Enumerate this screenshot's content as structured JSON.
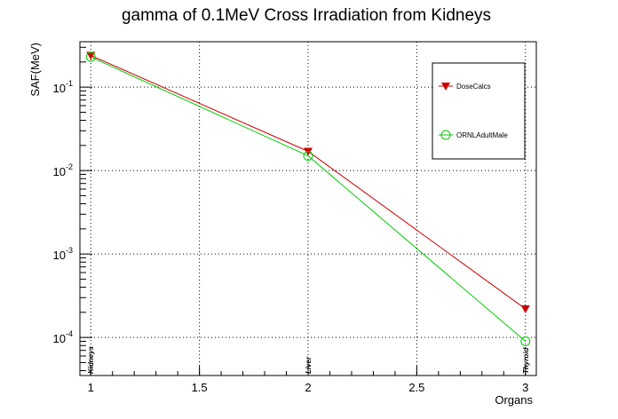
{
  "chart_data": {
    "type": "line",
    "title": "gamma of 0.1MeV Cross Irradiation from Kidneys",
    "xlabel": "Organs",
    "ylabel": "SAF(MeV)",
    "x_tick_labels": [
      "1",
      "1.5",
      "2",
      "2.5",
      "3"
    ],
    "x_ticks": [
      1,
      1.5,
      2,
      2.5,
      3
    ],
    "xlim": [
      0.95,
      3.05
    ],
    "y_scale": "log",
    "ylim": [
      3.5e-05,
      0.35
    ],
    "y_ticks": [
      {
        "value": 0.1,
        "base": "10",
        "exponent": "-1"
      },
      {
        "value": 0.01,
        "base": "10",
        "exponent": "-2"
      },
      {
        "value": 0.001,
        "base": "10",
        "exponent": "-3"
      },
      {
        "value": 0.0001,
        "base": "10",
        "exponent": "-4"
      }
    ],
    "categories": [
      "Kidneys",
      "Liver",
      "Thyroid"
    ],
    "x": [
      1,
      2,
      3
    ],
    "grid": true,
    "legend_position": "top-right",
    "series": [
      {
        "name": "DoseCalcs",
        "color": "#cc0000",
        "marker": "triangle-down",
        "values": [
          0.24,
          0.017,
          0.00022
        ]
      },
      {
        "name": "ORNLAdultMale",
        "color": "#00cc00",
        "marker": "circle-open",
        "values": [
          0.23,
          0.015,
          9e-05
        ]
      }
    ]
  }
}
